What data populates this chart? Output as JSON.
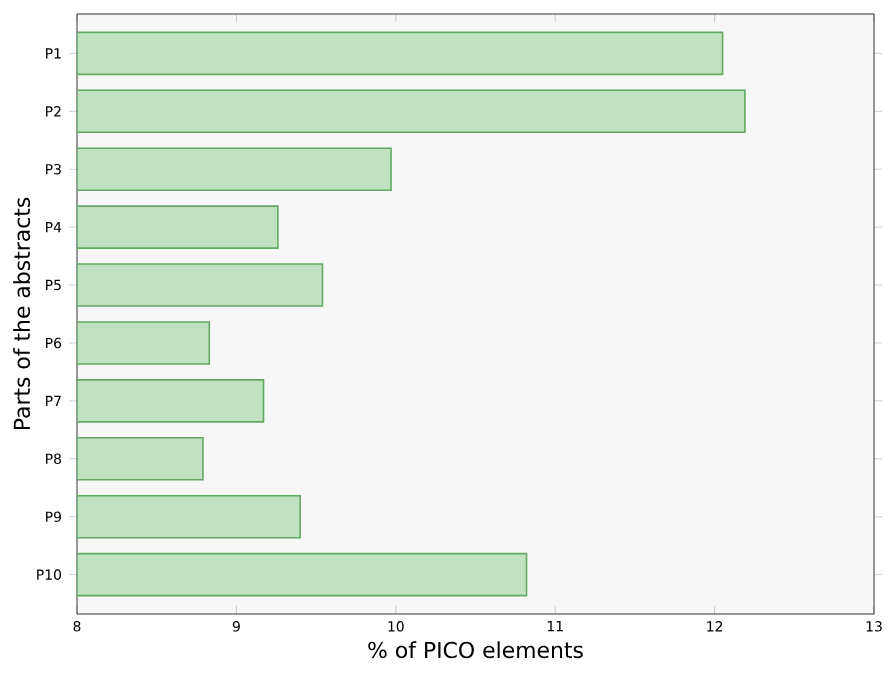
{
  "chart_data": {
    "type": "bar",
    "orientation": "horizontal",
    "xlabel": "% of PICO elements",
    "ylabel": "Parts of the abstracts",
    "categories": [
      "P1",
      "P2",
      "P3",
      "P4",
      "P5",
      "P6",
      "P7",
      "P8",
      "P9",
      "P10"
    ],
    "values": [
      12.05,
      12.19,
      9.97,
      9.26,
      9.54,
      8.83,
      9.17,
      8.79,
      9.4,
      10.82
    ],
    "color": "#c0e2c0",
    "xlim": [
      8,
      13
    ],
    "xticks": [
      8,
      9,
      10,
      11,
      12,
      13
    ]
  }
}
